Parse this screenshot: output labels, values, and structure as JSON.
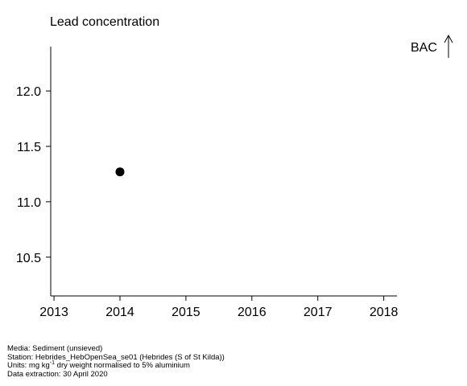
{
  "chart_data": {
    "type": "scatter",
    "title": "Lead concentration",
    "xlabel": "",
    "ylabel": "",
    "x_ticks": [
      "2013",
      "2014",
      "2015",
      "2016",
      "2017",
      "2018"
    ],
    "y_ticks": [
      "10.5",
      "11.0",
      "11.5",
      "12.0"
    ],
    "xlim": [
      2012.95,
      2018.2
    ],
    "ylim": [
      10.15,
      12.4
    ],
    "grid": false,
    "points": [
      {
        "x": 2014,
        "y": 11.27
      }
    ],
    "marker_color": "#000000",
    "annotation": {
      "label": "BAC",
      "arrow": "up-arrow-icon"
    }
  },
  "footer": {
    "media": "Media: Sediment (unsieved)",
    "station": "Station: Hebrides_HebOpenSea_se01 (Hebrides (S of St Kilda))",
    "units_prefix": "Units:  mg kg",
    "units_sup": "-1",
    "units_suffix": " dry weight normalised to 5% aluminium",
    "extraction": "Data extraction: 30 April 2020"
  }
}
